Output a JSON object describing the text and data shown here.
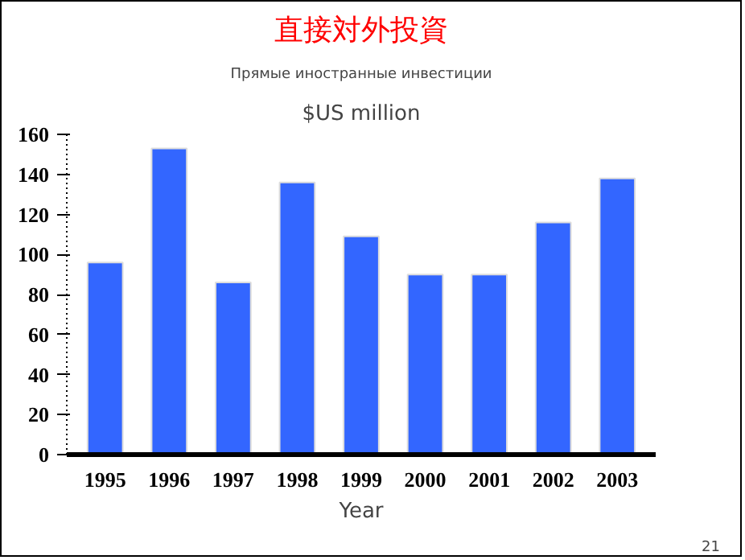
{
  "chart_data": {
    "type": "bar",
    "title": "直接対外投資",
    "subtitle": "Прямые иностранные инвестиции",
    "ylabel": "$US million",
    "xlabel": "Year",
    "categories": [
      "1995",
      "1996",
      "1997",
      "1998",
      "1999",
      "2000",
      "2001",
      "2002",
      "2003"
    ],
    "values": [
      96,
      153,
      86,
      136,
      109,
      90,
      90,
      116,
      138
    ],
    "color": "#3366ff",
    "ylim": [
      0,
      160
    ],
    "yticks": [
      0,
      20,
      40,
      60,
      80,
      100,
      120,
      140,
      160
    ],
    "grid": false,
    "annotations": [
      "21"
    ]
  }
}
